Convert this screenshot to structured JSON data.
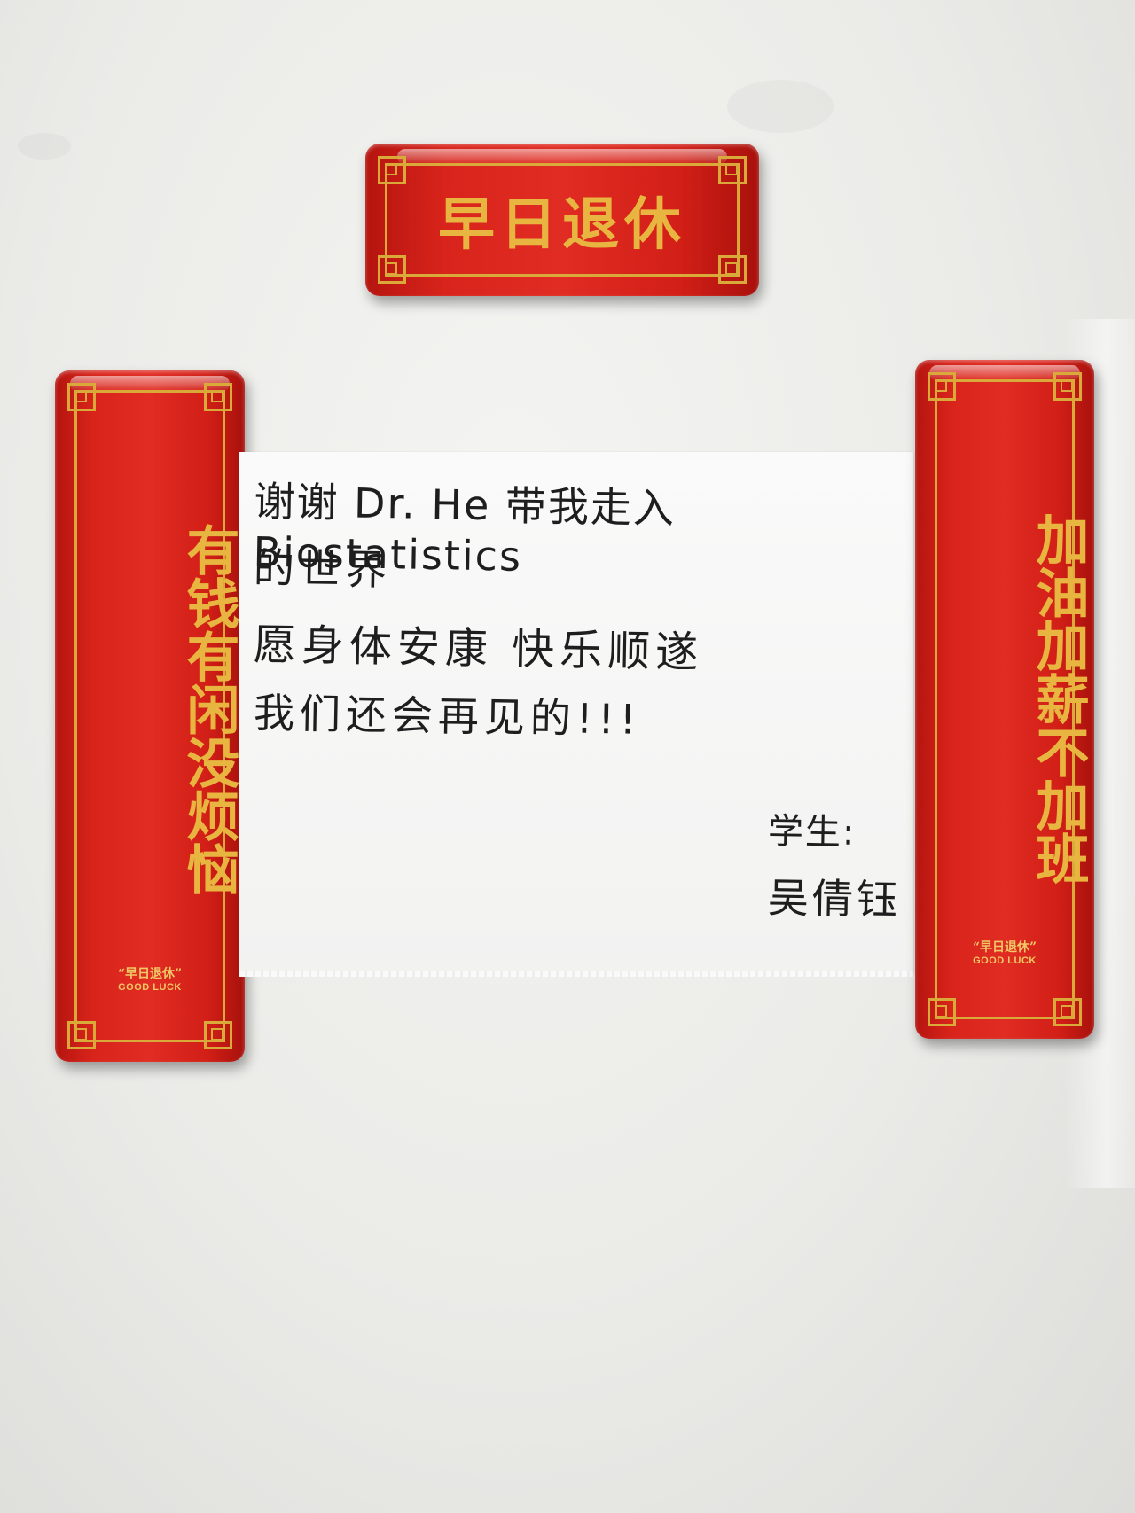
{
  "scene": {
    "description_colors": {
      "plaque_red": "#d8241b",
      "plaque_gold": "#e8b640",
      "board": "#ebebe8",
      "paper": "#fafafa"
    }
  },
  "top_plaque": {
    "text": "早日退休"
  },
  "left_plaque": {
    "text": "有钱有闲没烦恼",
    "brand_cn": "“早日退休”",
    "brand_en": "GOOD LUCK"
  },
  "right_plaque": {
    "text": "加油加薪不加班",
    "brand_cn": "“早日退休”",
    "brand_en": "GOOD LUCK"
  },
  "note": {
    "line1": "谢谢 Dr. He 带我走入 Biostatistics",
    "line2": "的世界",
    "line3": "愿身体安康  快乐顺遂",
    "line4": "我们还会再见的!!!",
    "signature_label": "学生:",
    "signature_name": "吴倩钰"
  }
}
